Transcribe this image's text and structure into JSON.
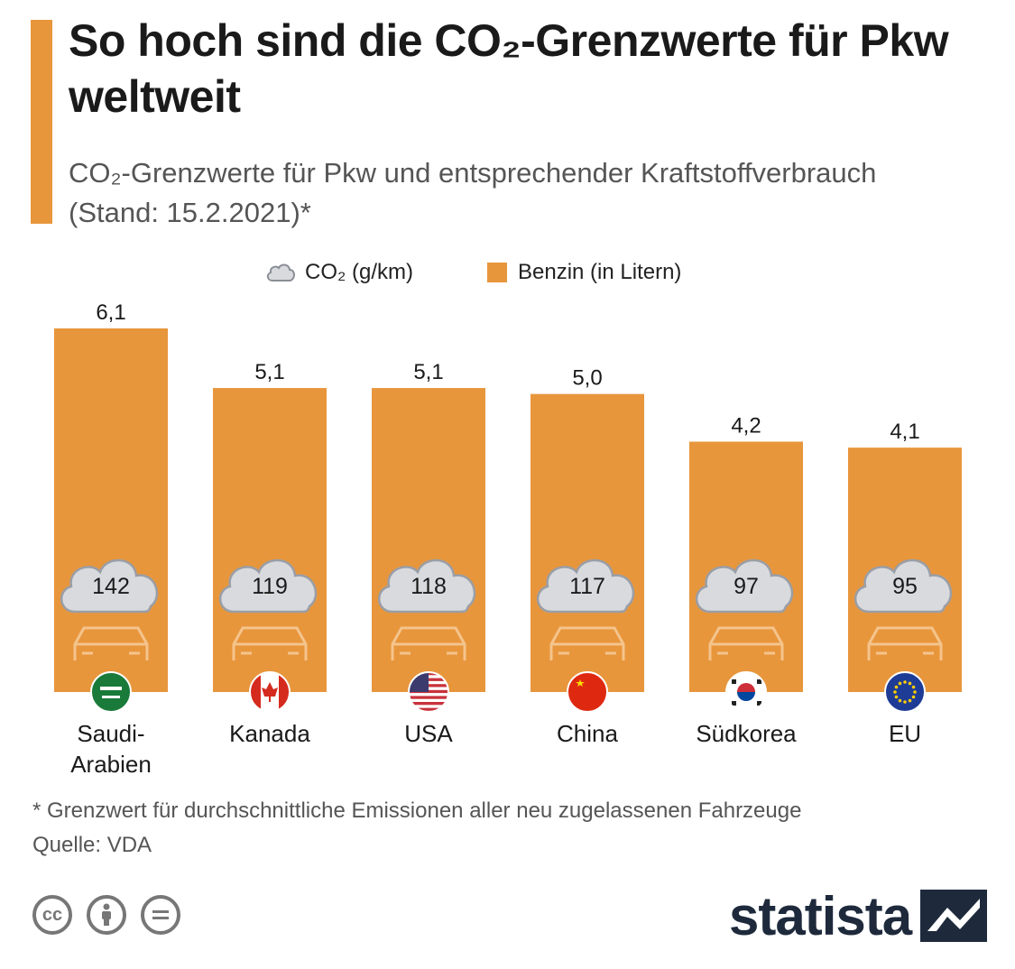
{
  "header": {
    "title": "So hoch sind die CO₂-Grenzwerte für Pkw weltweit",
    "subtitle": "CO₂-Grenzwerte für Pkw und entsprechender Kraftstoffverbrauch (Stand: 15.2.2021)*"
  },
  "legend": {
    "co2_label": "CO₂ (g/km)",
    "benzin_label": "Benzin (in Litern)"
  },
  "chart_data": {
    "type": "bar",
    "title": "So hoch sind die CO₂-Grenzwerte für Pkw weltweit",
    "subtitle": "CO₂-Grenzwerte für Pkw und entsprechender Kraftstoffverbrauch (Stand: 15.2.2021)*",
    "categories": [
      "Saudi-Arabien",
      "Kanada",
      "USA",
      "China",
      "Südkorea",
      "EU"
    ],
    "category_lines": [
      [
        "Saudi-",
        "Arabien"
      ],
      [
        "Kanada"
      ],
      [
        "USA"
      ],
      [
        "China"
      ],
      [
        "Südkorea"
      ],
      [
        "EU"
      ]
    ],
    "series": [
      {
        "name": "Benzin (in Litern)",
        "values": [
          6.1,
          5.1,
          5.1,
          5.0,
          4.2,
          4.1
        ],
        "labels": [
          "6,1",
          "5,1",
          "5,1",
          "5,0",
          "4,2",
          "4,1"
        ]
      },
      {
        "name": "CO₂ (g/km)",
        "values": [
          142,
          119,
          118,
          117,
          97,
          95
        ],
        "labels": [
          "142",
          "119",
          "118",
          "117",
          "97",
          "95"
        ]
      }
    ],
    "flags": [
      "saudi-arabia-flag",
      "canada-flag",
      "usa-flag",
      "china-flag",
      "south-korea-flag",
      "eu-flag"
    ],
    "ylim": [
      0,
      6.1
    ],
    "legend_position": "top-center"
  },
  "colors": {
    "bar": "#e8963c",
    "cloud": "#d8dade",
    "cloud_stroke": "#9a9ea6",
    "text": "#1a1a1a",
    "muted": "#555555"
  },
  "footer": {
    "note": "* Grenzwert für durchschnittliche Emissionen aller neu zugelassenen Fahrzeuge",
    "source": "Quelle: VDA",
    "brand": "statista",
    "license_icons": [
      "cc-icon",
      "by-icon",
      "nd-icon"
    ]
  }
}
